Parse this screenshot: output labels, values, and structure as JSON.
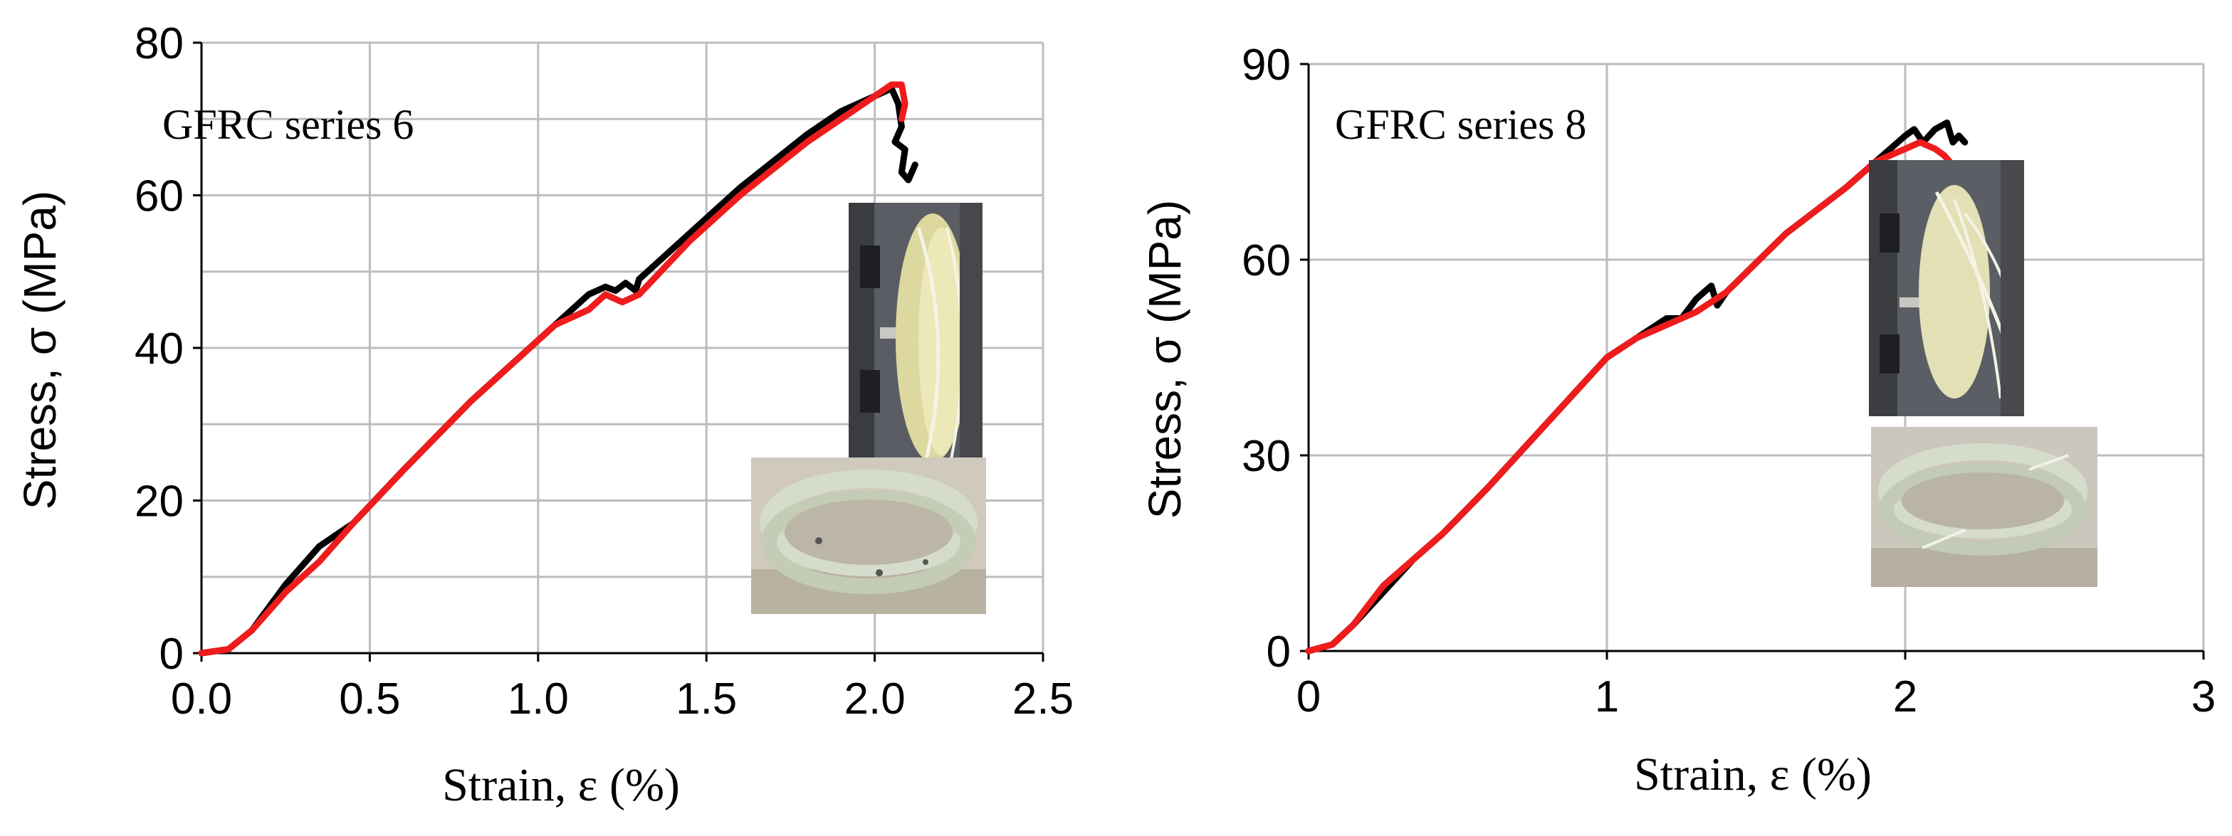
{
  "chart_data": [
    {
      "type": "line",
      "title": "GFRC series 6",
      "xlabel": "Strain, ε (%)",
      "ylabel": "Stress, σ (MPa)",
      "xlim": [
        0,
        2.5
      ],
      "ylim": [
        0,
        80
      ],
      "x_ticks": [
        "0.0",
        "0.5",
        "1.0",
        "1.5",
        "2.0",
        "2.5"
      ],
      "y_ticks": [
        "0",
        "20",
        "40",
        "60",
        "80"
      ],
      "grid": true,
      "colors": {
        "black": "#000000",
        "red": "#ee1c1c"
      },
      "series": [
        {
          "color": "#000000",
          "x": [
            0,
            0.08,
            0.15,
            0.25,
            0.35,
            0.45,
            0.6,
            0.8,
            0.95,
            1.05,
            1.15,
            1.2,
            1.23,
            1.26,
            1.29,
            1.3,
            1.45,
            1.6,
            1.8,
            1.9,
            2.0,
            2.05,
            2.07,
            2.08,
            2.06,
            2.09,
            2.08,
            2.1,
            2.12,
            2.11
          ],
          "y": [
            0,
            0.5,
            3,
            9,
            14,
            17,
            24,
            33,
            39,
            43,
            47,
            48,
            47.5,
            48.5,
            47.5,
            49,
            55,
            61,
            68,
            71,
            73,
            74,
            72,
            69,
            67,
            66,
            63,
            62,
            64,
            63
          ]
        },
        {
          "color": "#ee1c1c",
          "x": [
            0,
            0.08,
            0.15,
            0.25,
            0.35,
            0.45,
            0.6,
            0.8,
            0.95,
            1.05,
            1.15,
            1.2,
            1.25,
            1.3,
            1.45,
            1.6,
            1.8,
            1.9,
            2.0,
            2.05,
            2.08,
            2.09,
            2.08
          ],
          "y": [
            0,
            0.5,
            3,
            8,
            12,
            17,
            24,
            33,
            39,
            43,
            45,
            47,
            46,
            47,
            54,
            60,
            67,
            70,
            73,
            74.5,
            74.5,
            72,
            70
          ]
        }
      ]
    },
    {
      "type": "line",
      "title": "GFRC series 8",
      "xlabel": "Strain, ε (%)",
      "ylabel": "Stress, σ (MPa)",
      "xlim": [
        0,
        3
      ],
      "ylim": [
        0,
        90
      ],
      "x_ticks": [
        "0",
        "1",
        "2",
        "3"
      ],
      "y_ticks": [
        "0",
        "30",
        "60",
        "90"
      ],
      "grid": true,
      "colors": {
        "black": "#000000",
        "red": "#ee1c1c"
      },
      "series": [
        {
          "color": "#000000",
          "x": [
            0,
            0.08,
            0.15,
            0.25,
            0.35,
            0.45,
            0.6,
            0.8,
            1.0,
            1.1,
            1.2,
            1.25,
            1.3,
            1.35,
            1.37,
            1.4,
            1.6,
            1.8,
            1.9,
            2.0,
            2.03,
            2.06,
            2.1,
            2.14,
            2.16,
            2.18,
            2.2
          ],
          "y": [
            0,
            1,
            4,
            9,
            14,
            18,
            25,
            35,
            45,
            48,
            51,
            51,
            54,
            56,
            53,
            55,
            64,
            71,
            75,
            79,
            80,
            78,
            80,
            81,
            78,
            79,
            78
          ]
        },
        {
          "color": "#ee1c1c",
          "x": [
            0,
            0.08,
            0.15,
            0.25,
            0.35,
            0.45,
            0.6,
            0.8,
            1.0,
            1.1,
            1.2,
            1.3,
            1.4,
            1.6,
            1.8,
            1.9,
            2.0,
            2.05,
            2.1,
            2.13,
            2.15
          ],
          "y": [
            0,
            1,
            4,
            10,
            14,
            18,
            25,
            35,
            45,
            48,
            50,
            52,
            55,
            64,
            71,
            75,
            77,
            78,
            77,
            76,
            75
          ]
        }
      ]
    }
  ]
}
